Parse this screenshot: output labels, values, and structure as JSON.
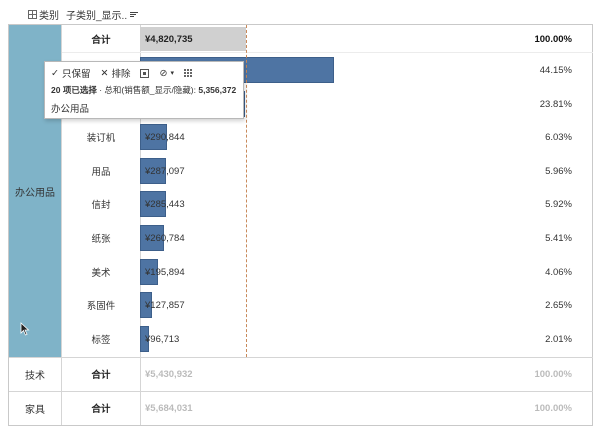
{
  "header": {
    "category_label": "类别",
    "subcategory_label": "子类别_显示..",
    "sort_icon": "sort-desc-icon"
  },
  "categories": [
    {
      "name": "办公用品",
      "total_label": "合计",
      "total_value": "¥4,820,735",
      "total_pct": "100.00%"
    },
    {
      "name": "技术",
      "total_label": "合计",
      "total_value": "¥5,430,932",
      "total_pct": "100.00%"
    },
    {
      "name": "家具",
      "total_label": "合计",
      "total_value": "¥5,684,031",
      "total_pct": "100.00%"
    }
  ],
  "office_rows": [
    {
      "label": "",
      "value": "",
      "pct": "44.15%",
      "share": 44.15
    },
    {
      "label": "",
      "value": "",
      "pct": "23.81%",
      "share": 23.81
    },
    {
      "label": "装订机",
      "value": "¥290,844",
      "pct": "6.03%",
      "share": 6.03
    },
    {
      "label": "用品",
      "value": "¥287,097",
      "pct": "5.96%",
      "share": 5.96
    },
    {
      "label": "信封",
      "value": "¥285,443",
      "pct": "5.92%",
      "share": 5.92
    },
    {
      "label": "纸张",
      "value": "¥260,784",
      "pct": "5.41%",
      "share": 5.41
    },
    {
      "label": "美术",
      "value": "¥195,894",
      "pct": "4.06%",
      "share": 4.06
    },
    {
      "label": "系固件",
      "value": "¥127,857",
      "pct": "2.65%",
      "share": 2.65
    },
    {
      "label": "标签",
      "value": "¥96,713",
      "pct": "2.01%",
      "share": 2.01
    }
  ],
  "tooltip": {
    "keep_only": "只保留",
    "exclude": "排除",
    "summary_count": "20 项已选择",
    "summary_sep": " · 总和(销售额_显示/隐藏): ",
    "summary_value": "5,356,372",
    "selection_name": "办公用品"
  },
  "colors": {
    "bar": "#4e74a3",
    "highlight": "#7fb3c8",
    "total_bar": "#d0d0d0",
    "ref_line": "#c8895a"
  }
}
